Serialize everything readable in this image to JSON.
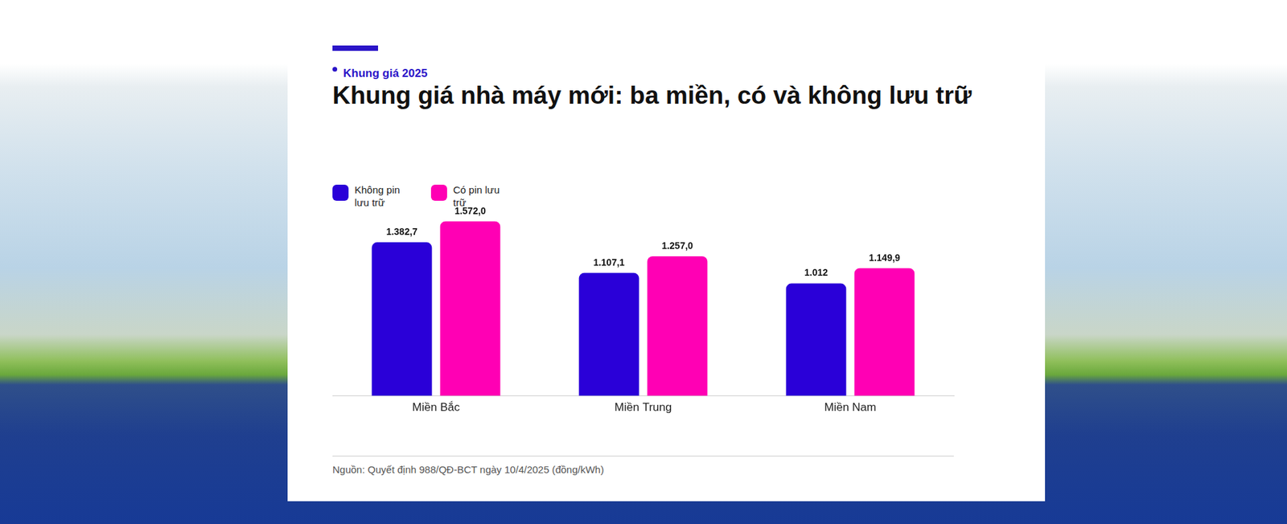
{
  "chart_data": {
    "type": "bar",
    "kicker": "Khung giá 2025",
    "title": "Khung giá nhà máy mới: ba miền, có và không lưu trữ",
    "source": "Nguồn: Quyết định 988/QĐ-BCT ngày 10/4/2025 (đồng/kWh)",
    "categories": [
      "Miền Bắc",
      "Miền Trung",
      "Miền Nam"
    ],
    "series": [
      {
        "name": "Không pin lưu trữ",
        "color": "#2a00d8",
        "values": [
          1382.7,
          1107.1,
          1012
        ],
        "value_labels": [
          "1.382,7",
          "1.107,1",
          "1.012"
        ]
      },
      {
        "name": "Có pin lưu trữ",
        "color": "#ff00b4",
        "values": [
          1572.0,
          1257.0,
          1149.9
        ],
        "value_labels": [
          "1.572,0",
          "1.257,0",
          "1.149,9"
        ]
      }
    ],
    "ylim": [
      0,
      1600
    ],
    "grid": false,
    "legend": "upper left",
    "data_labels": true,
    "tick_labels": "x"
  }
}
